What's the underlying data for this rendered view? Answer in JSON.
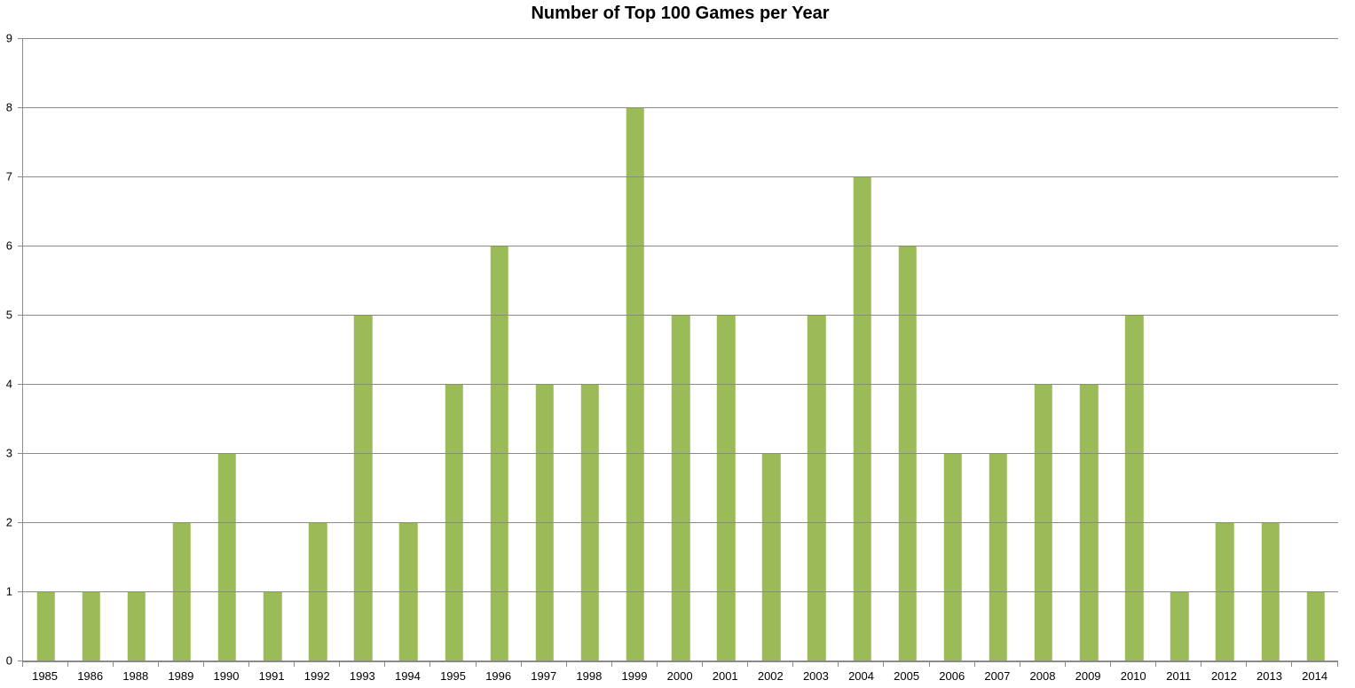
{
  "chart_data": {
    "type": "bar",
    "title": "Number of Top 100 Games per Year",
    "categories": [
      "1985",
      "1986",
      "1988",
      "1989",
      "1990",
      "1991",
      "1992",
      "1993",
      "1994",
      "1995",
      "1996",
      "1997",
      "1998",
      "1999",
      "2000",
      "2001",
      "2002",
      "2003",
      "2004",
      "2005",
      "2006",
      "2007",
      "2008",
      "2009",
      "2010",
      "2011",
      "2012",
      "2013",
      "2014"
    ],
    "values": [
      1,
      1,
      1,
      2,
      3,
      1,
      2,
      5,
      2,
      4,
      6,
      4,
      4,
      8,
      5,
      5,
      3,
      5,
      7,
      6,
      3,
      3,
      4,
      4,
      5,
      1,
      2,
      2,
      1
    ],
    "xlabel": "",
    "ylabel": "",
    "ylim": [
      0,
      9
    ],
    "yticks": [
      0,
      1,
      2,
      3,
      4,
      5,
      6,
      7,
      8,
      9
    ],
    "grid": "horizontal-gridlines",
    "legend": "none",
    "colors": {
      "bar": "#9BBB59",
      "gridline": "#8a8a8a",
      "axis": "#8a8a8a",
      "text": "#000000",
      "background": "#FFFFFF"
    }
  }
}
